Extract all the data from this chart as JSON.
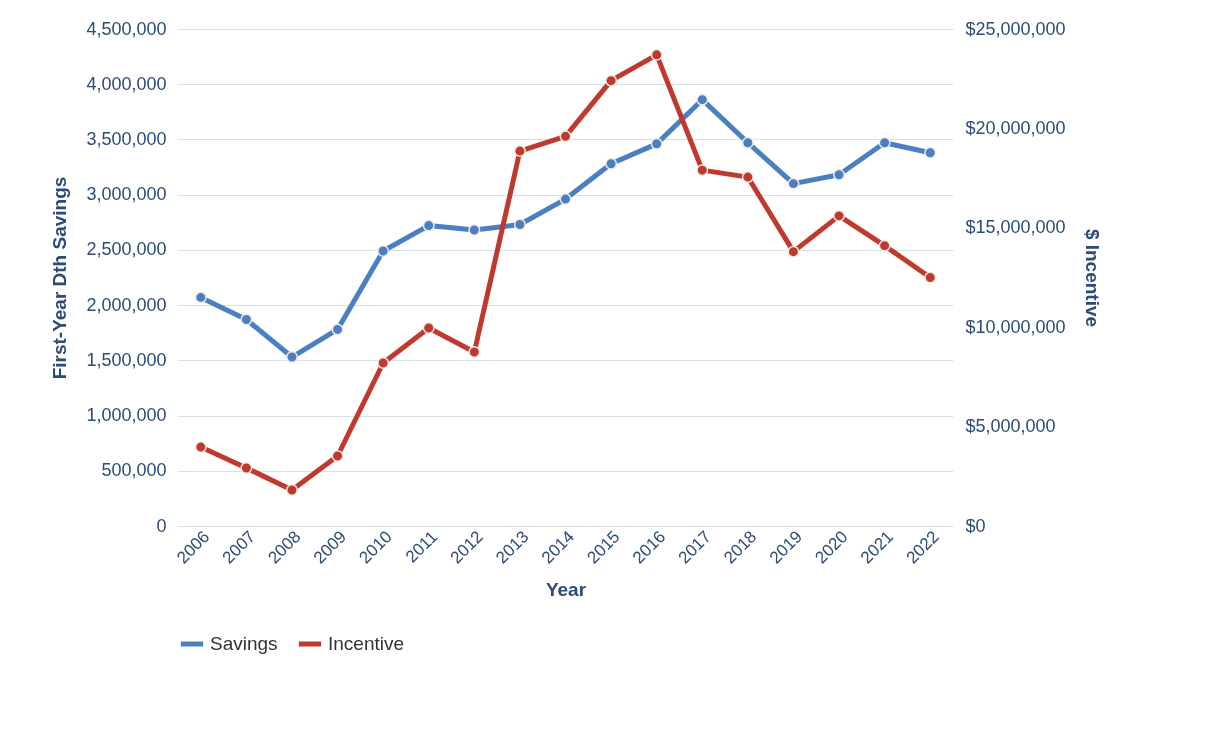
{
  "chart_data": {
    "type": "line",
    "xlabel": "Year",
    "ylabel": "First-Year Dth Savings",
    "y2label": "$ Incentive",
    "categories": [
      "2006",
      "2007",
      "2008",
      "2009",
      "2010",
      "2011",
      "2012",
      "2013",
      "2014",
      "2015",
      "2016",
      "2017",
      "2018",
      "2019",
      "2020",
      "2021",
      "2022"
    ],
    "series": [
      {
        "name": "Savings",
        "color": "#4a7fc1",
        "values": [
          2070000,
          1870000,
          1530000,
          1780000,
          2490000,
          2720000,
          2680000,
          2730000,
          2960000,
          3280000,
          3460000,
          3860000,
          3470000,
          3100000,
          3180000,
          3470000,
          3380000
        ]
      },
      {
        "name": "Incentive",
        "color": "#c0392f",
        "axis": "y2",
        "values": [
          3970000,
          2920000,
          1810000,
          3520000,
          8200000,
          9960000,
          8750000,
          18860000,
          19600000,
          22400000,
          23700000,
          17900000,
          17550000,
          13800000,
          15600000,
          14100000,
          12500000
        ]
      }
    ],
    "ylim": [
      0,
      4500000
    ],
    "yticks": [
      {
        "value": 0,
        "label": "0"
      },
      {
        "value": 500000,
        "label": "500,000"
      },
      {
        "value": 1000000,
        "label": "1,000,000"
      },
      {
        "value": 1500000,
        "label": "1,500,000"
      },
      {
        "value": 2000000,
        "label": "2,000,000"
      },
      {
        "value": 2500000,
        "label": "2,500,000"
      },
      {
        "value": 3000000,
        "label": "3,000,000"
      },
      {
        "value": 3500000,
        "label": "3,500,000"
      },
      {
        "value": 4000000,
        "label": "4,000,000"
      },
      {
        "value": 4500000,
        "label": "4,500,000"
      }
    ],
    "y2lim": [
      0,
      25000000
    ],
    "y2ticks": [
      {
        "value": 0,
        "label": "$0"
      },
      {
        "value": 5000000,
        "label": "$5,000,000"
      },
      {
        "value": 10000000,
        "label": "$10,000,000"
      },
      {
        "value": 15000000,
        "label": "$15,000,000"
      },
      {
        "value": 20000000,
        "label": "$20,000,000"
      },
      {
        "value": 25000000,
        "label": "$25,000,000"
      }
    ],
    "grid": "y",
    "legend": "bottom",
    "marker": "circle",
    "line_style": "solid"
  }
}
